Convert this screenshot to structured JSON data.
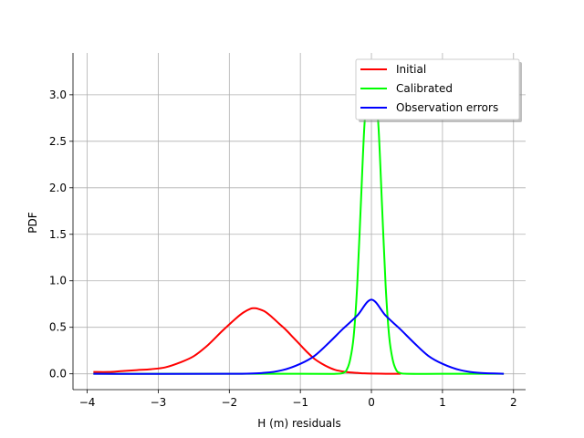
{
  "chart_data": {
    "type": "line",
    "title": "",
    "xlabel": "H (m) residuals",
    "ylabel": "PDF",
    "xlim": [
      -4.2,
      2.17
    ],
    "ylim": [
      -0.17,
      3.45
    ],
    "xticks": [
      -4,
      -3,
      -2,
      -1,
      0,
      1,
      2
    ],
    "xtick_labels": [
      "−4",
      "−3",
      "−2",
      "−1",
      "0",
      "1",
      "2"
    ],
    "yticks": [
      0.0,
      0.5,
      1.0,
      1.5,
      2.0,
      2.5,
      3.0
    ],
    "ytick_labels": [
      "0.0",
      "0.5",
      "1.0",
      "1.5",
      "2.0",
      "2.5",
      "3.0"
    ],
    "grid": true,
    "legend_position": "top-right",
    "series": [
      {
        "name": "Initial",
        "color": "#ff0000",
        "x": [
          -3.9,
          -3.7,
          -3.5,
          -3.3,
          -3.1,
          -2.9,
          -2.7,
          -2.5,
          -2.3,
          -2.1,
          -1.9,
          -1.8,
          -1.7,
          -1.65,
          -1.6,
          -1.5,
          -1.4,
          -1.3,
          -1.2,
          -1.1,
          -1.0,
          -0.9,
          -0.8,
          -0.7,
          -0.6,
          -0.5,
          -0.4,
          -0.3,
          -0.2,
          -0.1,
          0.0,
          0.2,
          0.4
        ],
        "y": [
          0.02,
          0.02,
          0.03,
          0.04,
          0.05,
          0.07,
          0.12,
          0.19,
          0.31,
          0.46,
          0.6,
          0.66,
          0.7,
          0.705,
          0.7,
          0.67,
          0.61,
          0.54,
          0.47,
          0.39,
          0.31,
          0.23,
          0.16,
          0.11,
          0.07,
          0.04,
          0.025,
          0.015,
          0.01,
          0.005,
          0.003,
          0.001,
          0.0
        ]
      },
      {
        "name": "Calibrated",
        "color": "#00ff00",
        "x": [
          -3.9,
          -1.0,
          -0.5,
          -0.4,
          -0.35,
          -0.3,
          -0.25,
          -0.2,
          -0.15,
          -0.1,
          -0.05,
          -0.02,
          0.0,
          0.02,
          0.05,
          0.1,
          0.15,
          0.2,
          0.25,
          0.3,
          0.35,
          0.4,
          0.5,
          1.0,
          1.85
        ],
        "y": [
          0.0,
          0.0,
          0.0,
          0.01,
          0.04,
          0.15,
          0.4,
          0.95,
          1.8,
          2.65,
          3.1,
          3.2,
          3.25,
          3.2,
          3.1,
          2.65,
          1.8,
          0.95,
          0.4,
          0.15,
          0.04,
          0.01,
          0.0,
          0.0,
          0.0
        ]
      },
      {
        "name": "Observation errors",
        "color": "#0000ff",
        "x": [
          -3.9,
          -2.0,
          -1.5,
          -1.25,
          -1.0,
          -0.8,
          -0.6,
          -0.4,
          -0.2,
          0.0,
          0.2,
          0.4,
          0.6,
          0.8,
          1.0,
          1.25,
          1.5,
          1.85
        ],
        "y": [
          0.0,
          0.0,
          0.011,
          0.04,
          0.108,
          0.194,
          0.333,
          0.484,
          0.626,
          0.798,
          0.626,
          0.484,
          0.333,
          0.194,
          0.108,
          0.04,
          0.011,
          0.001
        ]
      }
    ]
  }
}
